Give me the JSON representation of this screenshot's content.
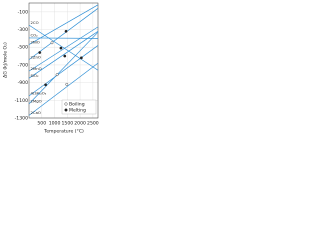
{
  "chart_data": {
    "type": "line",
    "ylabel": "ΔG (kJ/mole O₂)",
    "xlabel": "Temperature (°C)",
    "xlim": [
      0,
      2700
    ],
    "xticks": [
      500,
      1000,
      1500,
      2000,
      2500
    ],
    "ylim": [
      -1300,
      0
    ],
    "yticks": [
      -100,
      -300,
      -500,
      -700,
      -900,
      -1100,
      -1300
    ],
    "grid": true,
    "series": [
      {
        "name": "2NiO",
        "color": "#2e8fd6",
        "x": [
          0,
          2700
        ],
        "values": [
          -470,
          -20
        ]
      },
      {
        "name": "2CO",
        "color": "#2e8fd6",
        "x": [
          0,
          2700
        ],
        "values": [
          -250,
          -760
        ]
      },
      {
        "name": "CO₂",
        "color": "#2e8fd6",
        "x": [
          0,
          2700
        ],
        "values": [
          -395,
          -400
        ]
      },
      {
        "name": "2ZnO",
        "color": "#2e8fd6",
        "x": [
          0,
          2700
        ],
        "values": [
          -640,
          -60
        ]
      },
      {
        "name": "SiO₂",
        "color": "#2e8fd6",
        "x": [
          0,
          2700
        ],
        "values": [
          -850,
          -320
        ]
      },
      {
        "name": "2MnO",
        "color": "#2e8fd6",
        "x": [
          0,
          2700
        ],
        "values": [
          -770,
          -270
        ]
      },
      {
        "name": "4/3Al₂O₃",
        "color": "#2e8fd6",
        "x": [
          0,
          2700
        ],
        "values": [
          -1050,
          -480
        ]
      },
      {
        "name": "2MgO",
        "color": "#2e8fd6",
        "x": [
          0,
          2700
        ],
        "values": [
          -1140,
          -330
        ]
      },
      {
        "name": "2CaO",
        "color": "#2e8fd6",
        "x": [
          0,
          2700
        ],
        "values": [
          -1270,
          -680
        ]
      }
    ],
    "legend": [
      {
        "label": "Boiling",
        "marker": "open"
      },
      {
        "label": "Melting",
        "marker": "filled"
      }
    ],
    "points": [
      {
        "x": 900,
        "y": -450,
        "kind": 0
      },
      {
        "x": 420,
        "y": -560,
        "kind": 1
      },
      {
        "x": 1450,
        "y": -320,
        "kind": 1
      },
      {
        "x": 1250,
        "y": -510,
        "kind": 1
      },
      {
        "x": 1400,
        "y": -600,
        "kind": 1
      },
      {
        "x": 650,
        "y": -925,
        "kind": 1
      },
      {
        "x": 1100,
        "y": -810,
        "kind": 0
      },
      {
        "x": 1480,
        "y": -920,
        "kind": 0
      },
      {
        "x": 2050,
        "y": -620,
        "kind": 1
      }
    ]
  }
}
